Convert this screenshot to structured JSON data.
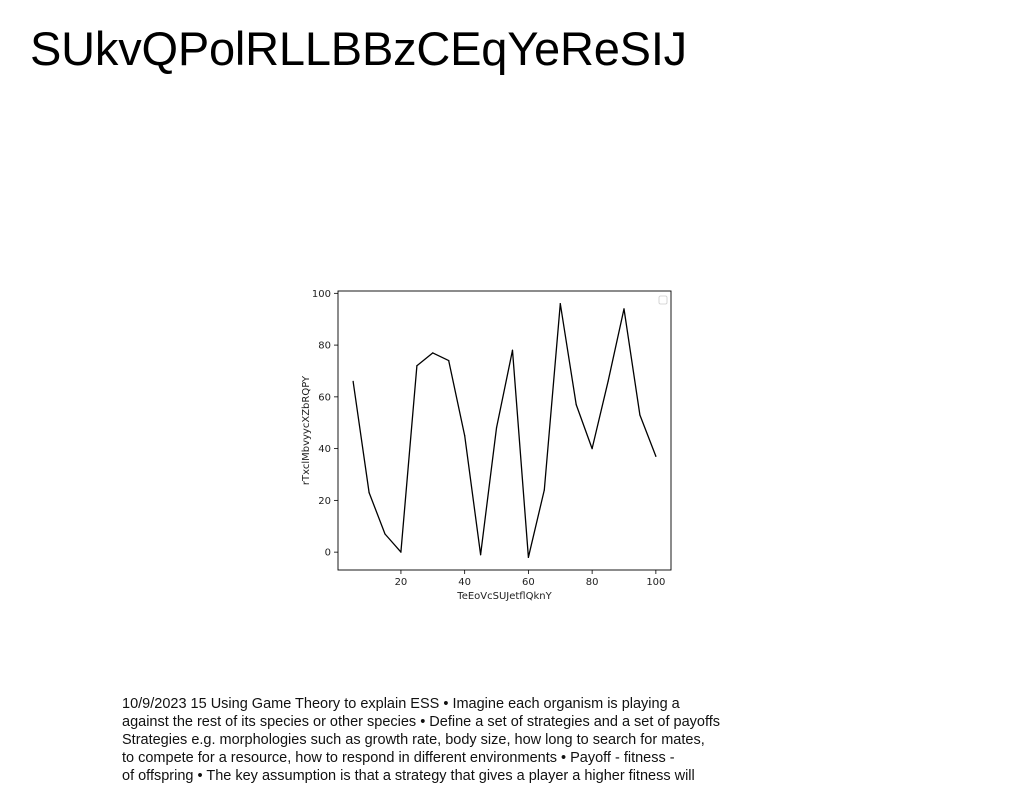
{
  "page": {
    "title": "SUkvQPolRLLBBzCEqYeReSIJ",
    "body_lines": [
      "10/9/2023 15 Using Game Theory to explain ESS • Imagine each organism is playing a",
      "against the rest of its species or other species • Define a set of strategies and a set of payoffs",
      "Strategies e.g. morphologies such as growth rate, body size, how long to search for mates,",
      "to compete for a resource, how to respond in different environments • Payoff - fitness -",
      "of offspring • The key assumption is that a strategy that gives a player a higher fitness will"
    ]
  },
  "chart_data": {
    "type": "line",
    "title": "",
    "xlabel": "TeEoVcSUJetflQknY",
    "ylabel": "rTxclMbvyycXZbRQPY",
    "x": [
      5,
      10,
      15,
      20,
      25,
      30,
      35,
      40,
      45,
      50,
      55,
      60,
      65,
      70,
      75,
      80,
      85,
      90,
      95,
      100
    ],
    "series": [
      {
        "values": [
          66,
          23,
          7,
          0,
          72,
          77,
          74,
          45,
          -1,
          48,
          78,
          -2,
          24,
          96,
          57,
          40,
          66,
          94,
          53,
          37
        ],
        "color": "#000000"
      }
    ],
    "xlim": [
      0.25,
      104.75
    ],
    "ylim": [
      -6.9,
      100.9
    ],
    "xticks": [
      "20",
      "40",
      "60",
      "80",
      "100"
    ],
    "yticks": [
      "0",
      "20",
      "40",
      "60",
      "80",
      "100"
    ],
    "grid": false,
    "legend": "top-right (empty)"
  }
}
